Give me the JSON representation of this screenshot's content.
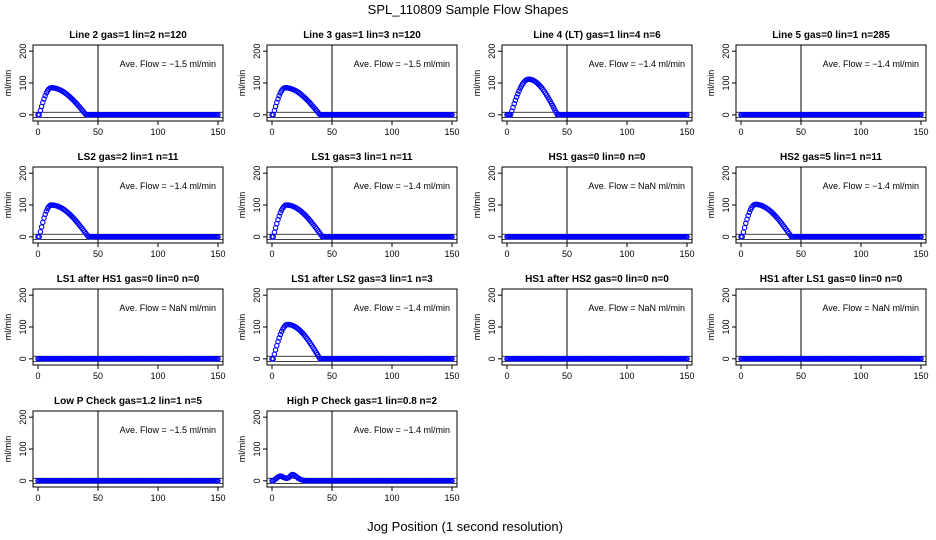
{
  "title": "SPL_110809  Sample Flow Shapes",
  "xlabel": "Jog Position (1 second resolution)",
  "ylabel": "ml/min",
  "colors": {
    "points": "#0000ff",
    "axis": "#000000"
  },
  "chart_data": [
    {
      "type": "scatter",
      "title": "Line 2 gas=1 lin=2 n=120",
      "annotation": "Ave. Flow = −1.5 ml/min",
      "xlim": [
        0,
        150
      ],
      "ylim": [
        -10,
        210
      ],
      "xticks": [
        0,
        50,
        100,
        150
      ],
      "yticks": [
        0,
        100,
        200
      ],
      "vline": 50,
      "hlines": [
        8,
        -8
      ],
      "peak": {
        "value": 85,
        "at": 11,
        "start": 1,
        "end": 40
      }
    },
    {
      "type": "scatter",
      "title": "Line 3 gas=1 lin=3 n=120",
      "annotation": "Ave. Flow = −1.5 ml/min",
      "xlim": [
        0,
        150
      ],
      "ylim": [
        -10,
        210
      ],
      "xticks": [
        0,
        50,
        100,
        150
      ],
      "yticks": [
        0,
        100,
        200
      ],
      "vline": 50,
      "hlines": [
        8,
        -8
      ],
      "peak": {
        "value": 85,
        "at": 11,
        "start": 1,
        "end": 40
      }
    },
    {
      "type": "scatter",
      "title": "Line 4 (LT) gas=1 lin=4 n=6",
      "annotation": "Ave. Flow = −1.4 ml/min",
      "xlim": [
        0,
        150
      ],
      "ylim": [
        -10,
        210
      ],
      "xticks": [
        0,
        50,
        100,
        150
      ],
      "yticks": [
        0,
        100,
        200
      ],
      "vline": 50,
      "hlines": [
        8,
        -8
      ],
      "peak": {
        "value": 112,
        "at": 18,
        "start": 3,
        "end": 42
      }
    },
    {
      "type": "scatter",
      "title": "Line 5 gas=0 lin=1 n=285",
      "annotation": "Ave. Flow = −1.4 ml/min",
      "xlim": [
        0,
        150
      ],
      "ylim": [
        -10,
        210
      ],
      "xticks": [
        0,
        50,
        100,
        150
      ],
      "yticks": [
        0,
        100,
        200
      ],
      "vline": 50,
      "hlines": [
        8,
        -8
      ],
      "peak": null
    },
    {
      "type": "scatter",
      "title": "LS2 gas=2 lin=1 n=11",
      "annotation": "Ave. Flow = −1.4 ml/min",
      "xlim": [
        0,
        150
      ],
      "ylim": [
        -10,
        210
      ],
      "xticks": [
        0,
        50,
        100,
        150
      ],
      "yticks": [
        0,
        100,
        200
      ],
      "vline": 50,
      "hlines": [
        8,
        -8
      ],
      "peak": {
        "value": 100,
        "at": 11,
        "start": 1,
        "end": 42
      }
    },
    {
      "type": "scatter",
      "title": "LS1 gas=3 lin=1 n=11",
      "annotation": "Ave. Flow = −1.4 ml/min",
      "xlim": [
        0,
        150
      ],
      "ylim": [
        -10,
        210
      ],
      "xticks": [
        0,
        50,
        100,
        150
      ],
      "yticks": [
        0,
        100,
        200
      ],
      "vline": 50,
      "hlines": [
        8,
        -8
      ],
      "peak": {
        "value": 100,
        "at": 12,
        "start": 1,
        "end": 42
      }
    },
    {
      "type": "scatter",
      "title": "HS1 gas=0 lin=0 n=0",
      "annotation": "Ave. Flow = NaN ml/min",
      "xlim": [
        0,
        150
      ],
      "ylim": [
        -10,
        210
      ],
      "xticks": [
        0,
        50,
        100,
        150
      ],
      "yticks": [
        0,
        100,
        200
      ],
      "vline": 50,
      "hlines": [
        8,
        -8
      ],
      "peak": null
    },
    {
      "type": "scatter",
      "title": "HS2 gas=5 lin=1 n=11",
      "annotation": "Ave. Flow = −1.4 ml/min",
      "xlim": [
        0,
        150
      ],
      "ylim": [
        -10,
        210
      ],
      "xticks": [
        0,
        50,
        100,
        150
      ],
      "yticks": [
        0,
        100,
        200
      ],
      "vline": 50,
      "hlines": [
        8,
        -8
      ],
      "peak": {
        "value": 102,
        "at": 12,
        "start": 1,
        "end": 42
      }
    },
    {
      "type": "scatter",
      "title": "LS1 after HS1 gas=0 lin=0 n=0",
      "annotation": "Ave. Flow = NaN ml/min",
      "xlim": [
        0,
        150
      ],
      "ylim": [
        -10,
        210
      ],
      "xticks": [
        0,
        50,
        100,
        150
      ],
      "yticks": [
        0,
        100,
        200
      ],
      "vline": 50,
      "hlines": [
        8,
        -8
      ],
      "peak": null
    },
    {
      "type": "scatter",
      "title": "LS1 after LS2 gas=3 lin=1 n=3",
      "annotation": "Ave. Flow = −1.4 ml/min",
      "xlim": [
        0,
        150
      ],
      "ylim": [
        -10,
        210
      ],
      "xticks": [
        0,
        50,
        100,
        150
      ],
      "yticks": [
        0,
        100,
        200
      ],
      "vline": 50,
      "hlines": [
        8,
        -8
      ],
      "peak": {
        "value": 108,
        "at": 13,
        "start": 1,
        "end": 40
      }
    },
    {
      "type": "scatter",
      "title": "HS1 after HS2 gas=0 lin=0 n=0",
      "annotation": "Ave. Flow = NaN ml/min",
      "xlim": [
        0,
        150
      ],
      "ylim": [
        -10,
        210
      ],
      "xticks": [
        0,
        50,
        100,
        150
      ],
      "yticks": [
        0,
        100,
        200
      ],
      "vline": 50,
      "hlines": [
        8,
        -8
      ],
      "peak": null
    },
    {
      "type": "scatter",
      "title": "HS1 after LS1 gas=0 lin=0 n=0",
      "annotation": "Ave. Flow = NaN ml/min",
      "xlim": [
        0,
        150
      ],
      "ylim": [
        -10,
        210
      ],
      "xticks": [
        0,
        50,
        100,
        150
      ],
      "yticks": [
        0,
        100,
        200
      ],
      "vline": 50,
      "hlines": [
        8,
        -8
      ],
      "peak": null
    },
    {
      "type": "scatter",
      "title": "Low P Check gas=1.2 lin=1 n=5",
      "annotation": "Ave. Flow = −1.5 ml/min",
      "xlim": [
        0,
        150
      ],
      "ylim": [
        -10,
        210
      ],
      "xticks": [
        0,
        50,
        100,
        150
      ],
      "yticks": [
        0,
        100,
        200
      ],
      "vline": 50,
      "hlines": [
        8,
        -8
      ],
      "peak": null
    },
    {
      "type": "scatter",
      "title": "High P Check gas=1 lin=0.8 n=2",
      "annotation": "Ave. Flow = −1.4 ml/min",
      "xlim": [
        0,
        150
      ],
      "ylim": [
        -10,
        210
      ],
      "xticks": [
        0,
        50,
        100,
        150
      ],
      "yticks": [
        0,
        100,
        200
      ],
      "vline": 50,
      "hlines": [
        8,
        -8
      ],
      "peak": "small",
      "points": [
        [
          1,
          0
        ],
        [
          2,
          3
        ],
        [
          3,
          6
        ],
        [
          4,
          9
        ],
        [
          5,
          12
        ],
        [
          6,
          14
        ],
        [
          7,
          15
        ],
        [
          8,
          14
        ],
        [
          9,
          12
        ],
        [
          10,
          10
        ],
        [
          11,
          9
        ],
        [
          12,
          8
        ],
        [
          13,
          9
        ],
        [
          14,
          10
        ],
        [
          15,
          14
        ],
        [
          16,
          18
        ],
        [
          17,
          20
        ],
        [
          18,
          19
        ],
        [
          19,
          17
        ],
        [
          20,
          14
        ],
        [
          21,
          11
        ],
        [
          22,
          8
        ],
        [
          23,
          6
        ],
        [
          24,
          4
        ],
        [
          25,
          3
        ],
        [
          26,
          2
        ],
        [
          27,
          1
        ]
      ]
    }
  ]
}
